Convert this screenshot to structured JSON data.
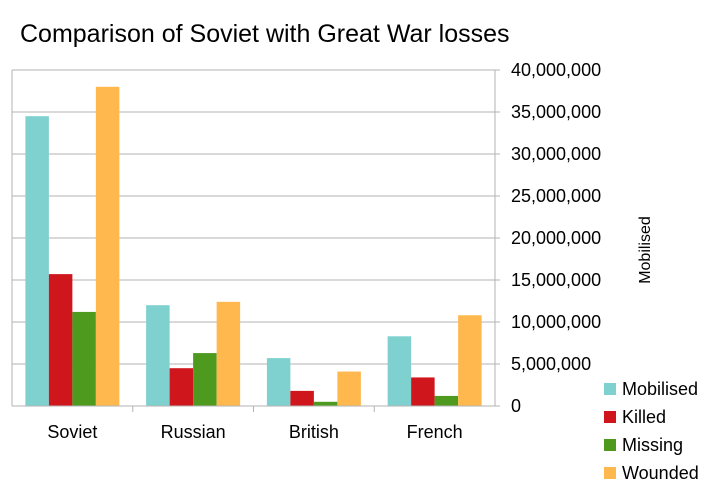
{
  "chart_data": {
    "type": "bar",
    "title": "Comparison of Soviet with Great War losses",
    "xlabel": "",
    "ylabel": "Mobilised",
    "ylim": [
      0,
      40000000
    ],
    "yticks": [
      0,
      5000000,
      10000000,
      15000000,
      20000000,
      25000000,
      30000000,
      35000000,
      40000000
    ],
    "ytick_labels": [
      "0",
      "5,000,000",
      "10,000,000",
      "15,000,000",
      "20,000,000",
      "25,000,000",
      "30,000,000",
      "35,000,000",
      "40,000,000"
    ],
    "grid": true,
    "y_axis_side": "right",
    "legend_position": "bottom-right",
    "categories": [
      "Soviet",
      "Russian",
      "British",
      "French"
    ],
    "series": [
      {
        "name": "Mobilised",
        "color": "#7fd1cf",
        "values": [
          34500000,
          12000000,
          5700000,
          8300000
        ]
      },
      {
        "name": "Killed",
        "color": "#d0161d",
        "values": [
          15700000,
          4500000,
          1800000,
          3400000
        ]
      },
      {
        "name": "Missing",
        "color": "#4e9a1f",
        "values": [
          11200000,
          6300000,
          500000,
          1200000
        ]
      },
      {
        "name": "Wounded",
        "color": "#ffb84d",
        "values": [
          38000000,
          12400000,
          4100000,
          10800000
        ]
      }
    ]
  }
}
